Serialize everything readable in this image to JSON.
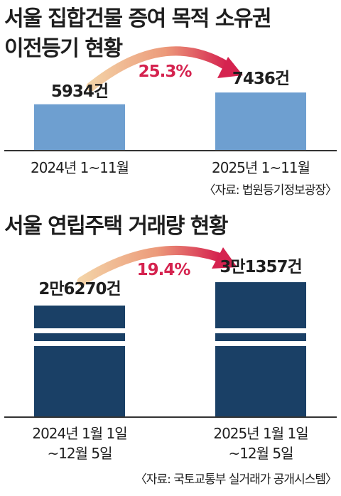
{
  "chart_data": [
    {
      "type": "bar",
      "title": "서울 집합건물 증여 목적 소유권 이전등기 현황",
      "title_lines": [
        "서울 집합건물 증여 목적 소유권",
        "이전등기 현황"
      ],
      "categories": [
        "2024년 1~11월",
        "2025년 1~11월"
      ],
      "values": [
        5934,
        7436
      ],
      "value_labels": [
        "5934건",
        "7436건"
      ],
      "change_label": "25.3%",
      "source": "〈자료: 법원등기정보광장〉",
      "xlabel": "",
      "ylabel": "",
      "bar_color": "#6e9fd0",
      "grid": false
    },
    {
      "type": "bar",
      "title": "서울 연립주택 거래량 현황",
      "title_lines": [
        "서울 연립주택 거래량 현황"
      ],
      "categories": [
        "2024년 1월 1일 ~12월 5일",
        "2025년 1월 1일 ~12월 5일"
      ],
      "category_lines": [
        [
          "2024년 1월 1일",
          "~12월 5일"
        ],
        [
          "2025년 1월 1일",
          "~12월 5일"
        ]
      ],
      "values": [
        26270,
        31357
      ],
      "value_labels": [
        "2만6270건",
        "3만1357건"
      ],
      "change_label": "19.4%",
      "source": "〈자료: 국토교통부 실거래가 공개시스템〉",
      "xlabel": "",
      "ylabel": "",
      "bar_color": "#1a4066",
      "axis_break": true,
      "grid": false
    }
  ],
  "colors": {
    "title": "#1e1e1e",
    "percent": "#d5234f",
    "arrow_start": "#f3d2a6",
    "arrow_end": "#d5234f",
    "axis": "#333333"
  }
}
